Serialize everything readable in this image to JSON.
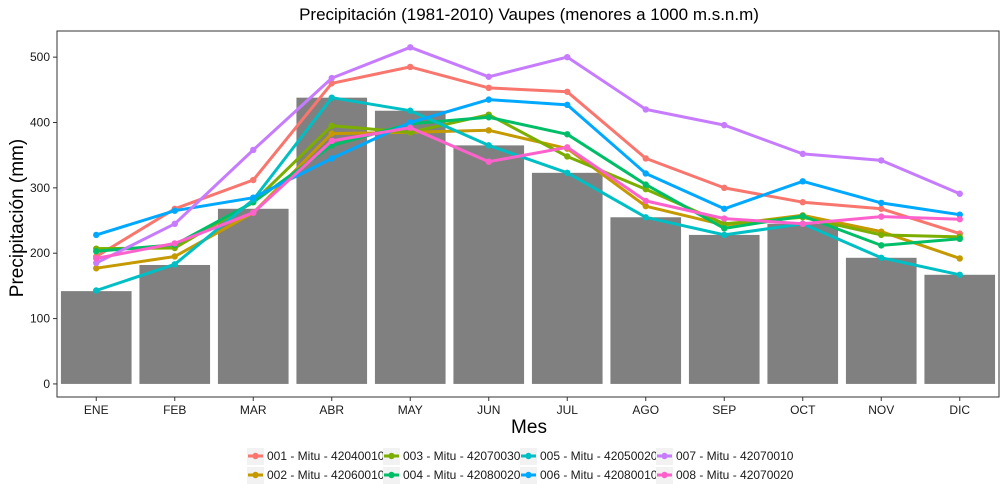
{
  "chart_data": {
    "type": "bar+line",
    "title": "Precipitación (1981-2010) Vaupes (menores a 1000 m.s.n.m)",
    "xlabel": "Mes",
    "ylabel": "Precipitación (mm)",
    "categories": [
      "ENE",
      "FEB",
      "MAR",
      "ABR",
      "MAY",
      "JUN",
      "JUL",
      "AGO",
      "SEP",
      "OCT",
      "NOV",
      "DIC"
    ],
    "ylim": [
      -20,
      540
    ],
    "yticks": [
      0,
      100,
      200,
      300,
      400,
      500
    ],
    "grid": false,
    "legend_position": "bottom",
    "bar_color": "#808080",
    "bars": [
      142,
      182,
      268,
      438,
      418,
      365,
      323,
      255,
      228,
      245,
      193,
      167
    ],
    "series": [
      {
        "name": "001 - Mitu - 42040010",
        "color": "#F8766D",
        "values": [
          195,
          268,
          312,
          460,
          485,
          453,
          447,
          345,
          300,
          278,
          268,
          230
        ]
      },
      {
        "name": "002 - Mitu - 42060010",
        "color": "#C49A00",
        "values": [
          177,
          195,
          262,
          383,
          385,
          388,
          360,
          272,
          243,
          258,
          233,
          192
        ]
      },
      {
        "name": "003 - Mitu - 42070030",
        "color": "#7CAE00",
        "values": [
          207,
          208,
          278,
          395,
          385,
          412,
          348,
          298,
          245,
          255,
          228,
          225
        ]
      },
      {
        "name": "004 - Mitu - 42080020",
        "color": "#00BE67",
        "values": [
          203,
          213,
          278,
          365,
          398,
          408,
          382,
          305,
          238,
          257,
          212,
          222
        ]
      },
      {
        "name": "005 - Mitu - 42050020",
        "color": "#00BFC4",
        "values": [
          143,
          183,
          282,
          438,
          418,
          365,
          323,
          255,
          228,
          245,
          193,
          167
        ]
      },
      {
        "name": "006 - Mitu - 42080010",
        "color": "#00A9FF",
        "values": [
          228,
          265,
          285,
          345,
          400,
          435,
          427,
          322,
          268,
          310,
          277,
          259
        ]
      },
      {
        "name": "007 - Mitu - 42070010",
        "color": "#C77CFF",
        "values": [
          185,
          245,
          358,
          468,
          515,
          470,
          500,
          420,
          396,
          352,
          342,
          291
        ]
      },
      {
        "name": "008 - Mitu - 42070020",
        "color": "#FF61CC",
        "values": [
          192,
          215,
          262,
          372,
          392,
          340,
          362,
          280,
          253,
          245,
          256,
          252
        ]
      }
    ]
  }
}
